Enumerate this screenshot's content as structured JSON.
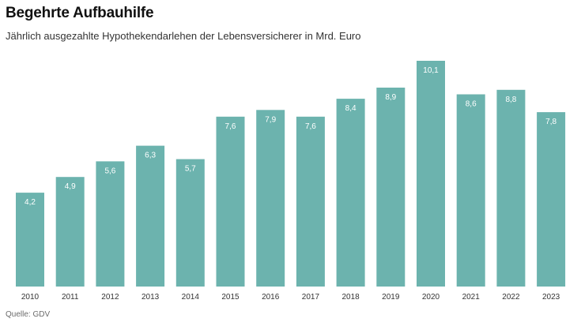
{
  "header": {
    "title": "Begehrte Aufbauhilfe",
    "subtitle": "Jährlich ausgezahlte Hypothekendarlehen der Lebensversicherer in Mrd. Euro"
  },
  "footer": {
    "source": "Quelle: GDV"
  },
  "colors": {
    "bar": "#6cb3ae",
    "bar_label": "#ffffff",
    "axis": "#333333"
  },
  "chart_data": {
    "type": "bar",
    "categories": [
      "2010",
      "2011",
      "2012",
      "2013",
      "2014",
      "2015",
      "2016",
      "2017",
      "2018",
      "2019",
      "2020",
      "2021",
      "2022",
      "2023"
    ],
    "values": [
      4.2,
      4.9,
      5.6,
      6.3,
      5.7,
      7.6,
      7.9,
      7.6,
      8.4,
      8.9,
      10.1,
      8.6,
      8.8,
      7.8
    ],
    "value_labels": [
      "4,2",
      "4,9",
      "5,6",
      "6,3",
      "5,7",
      "7,6",
      "7,9",
      "7,6",
      "8,4",
      "8,9",
      "10,1",
      "8,6",
      "8,8",
      "7,8"
    ],
    "title": "Begehrte Aufbauhilfe",
    "subtitle": "Jährlich ausgezahlte Hypothekendarlehen der Lebensversicherer in Mrd. Euro",
    "xlabel": "",
    "ylabel": "",
    "ylim": [
      0,
      10.1
    ],
    "grid": false,
    "legend": "none"
  }
}
